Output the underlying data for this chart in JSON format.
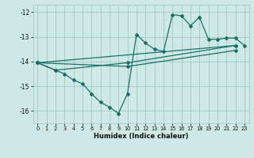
{
  "xlabel": "Humidex (Indice chaleur)",
  "xlim": [
    -0.5,
    23.5
  ],
  "ylim": [
    -16.5,
    -11.7
  ],
  "yticks": [
    -16,
    -15,
    -14,
    -13,
    -12
  ],
  "xticks": [
    0,
    1,
    2,
    3,
    4,
    5,
    6,
    7,
    8,
    9,
    10,
    11,
    12,
    13,
    14,
    15,
    16,
    17,
    18,
    19,
    20,
    21,
    22,
    23
  ],
  "bg_color": "#cde8e5",
  "grid_color": "#a0c8c4",
  "line_color": "#1a7068",
  "series": [
    {
      "x": [
        0,
        2,
        3,
        4,
        5,
        6,
        7,
        8,
        9,
        10,
        11,
        12,
        13,
        14,
        15,
        16,
        17,
        18,
        19,
        20,
        21,
        22,
        23
      ],
      "y": [
        -14.05,
        -14.35,
        -14.5,
        -14.75,
        -14.9,
        -15.3,
        -15.65,
        -15.85,
        -16.1,
        -15.3,
        -12.9,
        -13.25,
        -13.5,
        -13.6,
        -12.1,
        -12.15,
        -12.55,
        -12.2,
        -13.1,
        -13.1,
        -13.05,
        -13.05,
        -13.35
      ]
    },
    {
      "x": [
        0,
        2,
        10,
        22
      ],
      "y": [
        -14.05,
        -14.35,
        -14.05,
        -13.35
      ]
    },
    {
      "x": [
        0,
        10,
        22
      ],
      "y": [
        -14.05,
        -14.2,
        -13.55
      ]
    },
    {
      "x": [
        0,
        22
      ],
      "y": [
        -14.05,
        -13.35
      ]
    }
  ]
}
